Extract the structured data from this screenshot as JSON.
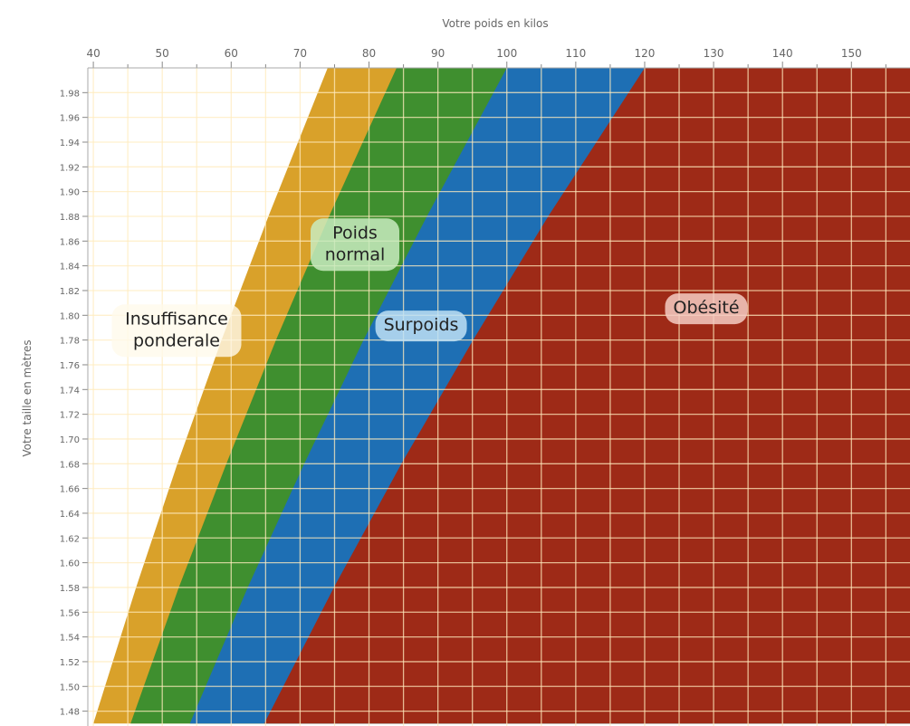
{
  "chart_data": {
    "type": "area",
    "x_label": "Votre poids en kilos",
    "y_label": "Votre taille en mètres",
    "xlim": [
      39.2,
      158.5
    ],
    "xticks": [
      40,
      50,
      60,
      70,
      80,
      90,
      100,
      110,
      120,
      130,
      140,
      150
    ],
    "xminor_ticks": [
      45,
      55,
      65,
      75,
      85,
      95,
      105,
      115,
      125,
      135,
      145,
      155
    ],
    "ylim": [
      1.468,
      2.0
    ],
    "yticks": [
      1.48,
      {
        "value": 1.5,
        "label": "1.50"
      },
      1.52,
      1.54,
      1.56,
      1.58,
      {
        "value": 1.6,
        "label": "1.60"
      },
      1.62,
      1.64,
      1.66,
      1.68,
      {
        "value": 1.7,
        "label": "1.70"
      },
      1.72,
      1.74,
      1.76,
      1.78,
      {
        "value": 1.8,
        "label": "1.80"
      },
      1.82,
      1.84,
      1.86,
      1.88,
      {
        "value": 1.9,
        "label": "1.90"
      },
      1.92,
      1.94,
      1.96,
      1.98
    ],
    "grid": true,
    "heights": [
      1.47,
      1.58,
      1.68,
      1.78,
      1.88,
      2.0
    ],
    "series": [
      {
        "color": "#d9a12a",
        "values": [
          40.0,
          46.2,
          52.2,
          58.6,
          65.4,
          74.0
        ]
      },
      {
        "name": "Poids normal",
        "color": "#3f8f2f",
        "values": [
          45.4,
          52.4,
          59.3,
          66.5,
          74.2,
          84.0
        ]
      },
      {
        "name": "Surpoids",
        "color": "#1e6fb4",
        "values": [
          54.0,
          62.4,
          70.6,
          79.2,
          88.4,
          100.0
        ]
      },
      {
        "name": "Obésité",
        "color": "#9e2a17",
        "values": [
          64.8,
          74.9,
          84.7,
          95.1,
          106.0,
          120.0
        ]
      }
    ],
    "annotations": [
      "Insuffisance ponderale"
    ]
  }
}
